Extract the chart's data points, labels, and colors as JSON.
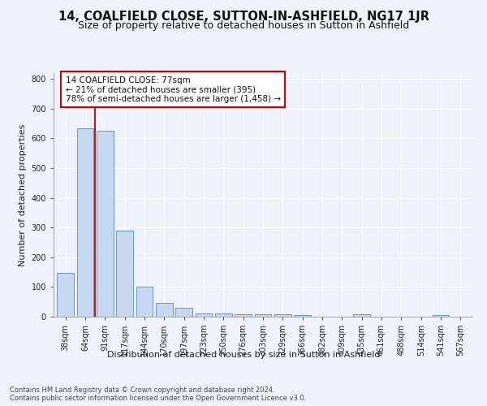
{
  "title": "14, COALFIELD CLOSE, SUTTON-IN-ASHFIELD, NG17 1JR",
  "subtitle": "Size of property relative to detached houses in Sutton in Ashfield",
  "xlabel": "Distribution of detached houses by size in Sutton in Ashfield",
  "ylabel": "Number of detached properties",
  "footer_line1": "Contains HM Land Registry data © Crown copyright and database right 2024.",
  "footer_line2": "Contains public sector information licensed under the Open Government Licence v3.0.",
  "categories": [
    "38sqm",
    "64sqm",
    "91sqm",
    "117sqm",
    "144sqm",
    "170sqm",
    "197sqm",
    "223sqm",
    "250sqm",
    "276sqm",
    "303sqm",
    "329sqm",
    "356sqm",
    "382sqm",
    "409sqm",
    "435sqm",
    "461sqm",
    "488sqm",
    "514sqm",
    "541sqm",
    "567sqm"
  ],
  "values": [
    148,
    635,
    625,
    290,
    102,
    46,
    30,
    12,
    10,
    7,
    7,
    8,
    6,
    0,
    0,
    8,
    0,
    0,
    0,
    6,
    0
  ],
  "bar_color": "#c5d8ef",
  "bar_edge_color": "#5b8ac5",
  "highlight_color": "#c00000",
  "annotation_text": "14 COALFIELD CLOSE: 77sqm\n← 21% of detached houses are smaller (395)\n78% of semi-detached houses are larger (1,458) →",
  "annotation_box_color": "#ffffff",
  "annotation_box_edge": "#cc0000",
  "ylim": [
    0,
    820
  ],
  "yticks": [
    0,
    100,
    200,
    300,
    400,
    500,
    600,
    700,
    800
  ],
  "bg_color": "#eef2fb",
  "title_fontsize": 10.5,
  "subtitle_fontsize": 9,
  "axis_label_fontsize": 8,
  "tick_fontsize": 7,
  "footer_fontsize": 6,
  "annot_fontsize": 7.5
}
